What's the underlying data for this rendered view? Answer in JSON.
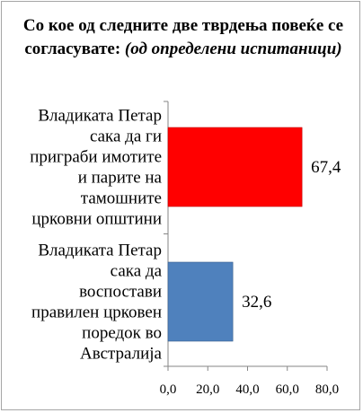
{
  "chart_data": {
    "type": "bar",
    "orientation": "horizontal",
    "title": {
      "main": "Со кое од следните две тврдења повеќе се согласувате:",
      "note": "(од определени испитаници)"
    },
    "categories": [
      [
        "Владиката Петар",
        "сака да ги",
        "приграби имотите",
        "и парите на",
        "тамошните",
        "црковни општини"
      ],
      [
        "Владиката Петар",
        "сака да",
        "воспостави",
        "правилен црковен",
        "поредок во",
        "Австралија"
      ]
    ],
    "values": [
      67.4,
      32.6
    ],
    "value_labels": [
      "67,4",
      "32,6"
    ],
    "colors": [
      "#ff0000",
      "#4f81bd"
    ],
    "xlim": [
      0,
      80
    ],
    "xticks": [
      0,
      20,
      40,
      60,
      80
    ],
    "xtick_labels": [
      "0,0",
      "20,0",
      "40,0",
      "60,0",
      "80,0"
    ],
    "grid": false,
    "legend": "none"
  }
}
